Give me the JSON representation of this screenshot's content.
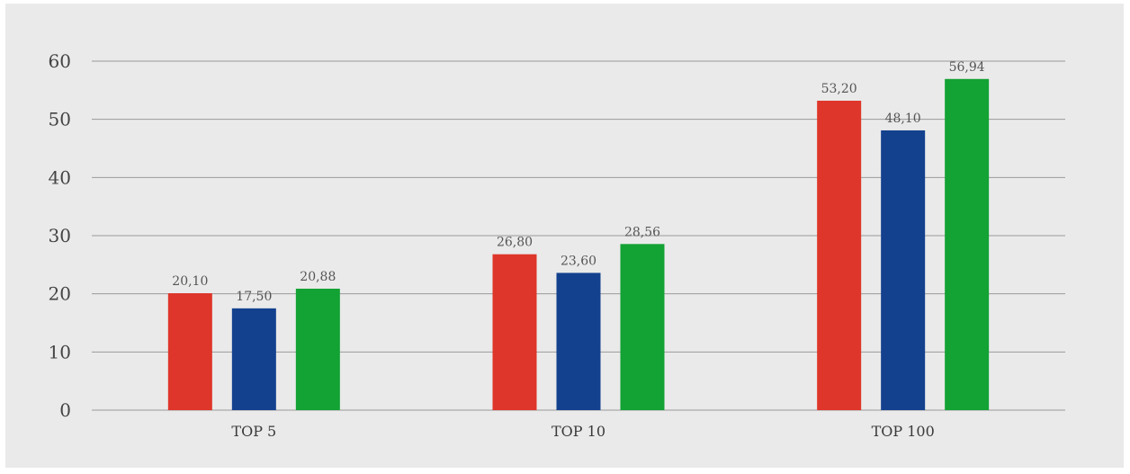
{
  "chart_data": {
    "type": "bar",
    "categories": [
      "TOP 5",
      "TOP 10",
      "TOP 100"
    ],
    "series": [
      {
        "values": [
          20.1,
          26.8,
          53.2
        ],
        "labels": [
          "20,10",
          "26,80",
          "53,20"
        ],
        "color": "#de362a"
      },
      {
        "values": [
          17.5,
          23.6,
          48.1
        ],
        "labels": [
          "17,50",
          "23,60",
          "48,10"
        ],
        "color": "#13418e"
      },
      {
        "values": [
          20.88,
          28.56,
          56.94
        ],
        "labels": [
          "20,88",
          "28,56",
          "56,94"
        ],
        "color": "#13a234"
      }
    ],
    "ylim": [
      0,
      60
    ],
    "yticks": [
      "0",
      "10",
      "20",
      "30",
      "40",
      "50",
      "60"
    ],
    "grid": true,
    "legend": "none",
    "background": "#eaeaea"
  }
}
